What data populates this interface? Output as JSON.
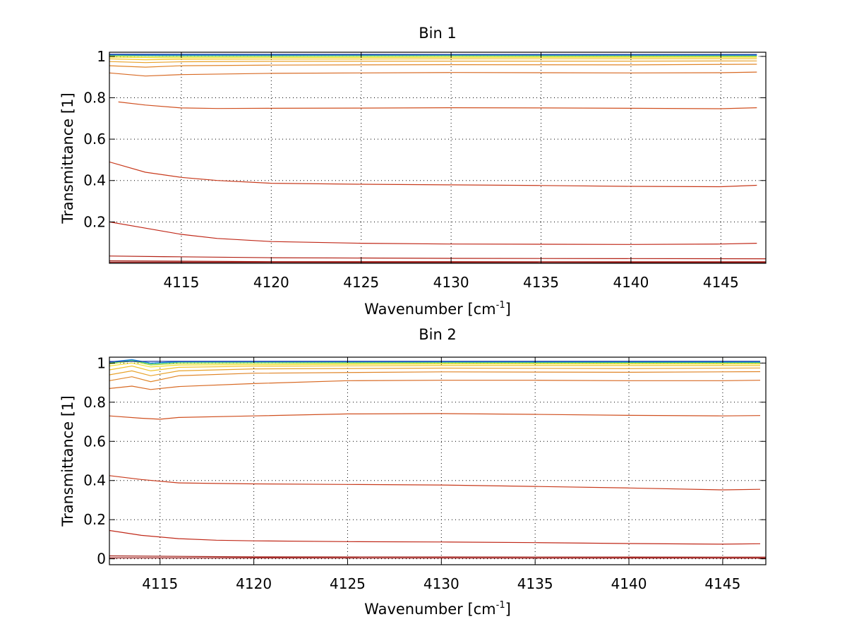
{
  "chart_data": [
    {
      "type": "line",
      "title": "Bin 1",
      "xlabel": "Wavenumber [cm",
      "xlabel_sup": "-1",
      "xlabel_end": "]",
      "ylabel": "Transmittance [1]",
      "xlim": [
        4111,
        4147.5
      ],
      "ylim": [
        0,
        1.02
      ],
      "grid": true,
      "xticks": [
        4115,
        4120,
        4125,
        4130,
        4135,
        4140,
        4145
      ],
      "xtick_labels": [
        "4115",
        "4120",
        "4125",
        "4130",
        "4135",
        "4140",
        "4145"
      ],
      "yticks": [
        0.2,
        0.4,
        0.6,
        0.8,
        1
      ],
      "ytick_labels": [
        "0.2",
        "0.4",
        "0.6",
        "0.8",
        "1"
      ],
      "series": [
        {
          "color": "#8b0000",
          "values": [
            [
              4111,
              0.005
            ],
            [
              4147.5,
              0.004
            ]
          ]
        },
        {
          "color": "#a01810",
          "values": [
            [
              4111,
              0.012
            ],
            [
              4120,
              0.008
            ],
            [
              4147.5,
              0.007
            ]
          ]
        },
        {
          "color": "#b22014",
          "values": [
            [
              4111,
              0.035
            ],
            [
              4114,
              0.032
            ],
            [
              4120,
              0.027
            ],
            [
              4130,
              0.024
            ],
            [
              4147.5,
              0.022
            ]
          ]
        },
        {
          "color": "#c02818",
          "values": [
            [
              4111,
              0.2
            ],
            [
              4113,
              0.17
            ],
            [
              4115,
              0.14
            ],
            [
              4117,
              0.12
            ],
            [
              4120,
              0.105
            ],
            [
              4125,
              0.097
            ],
            [
              4130,
              0.093
            ],
            [
              4135,
              0.092
            ],
            [
              4140,
              0.091
            ],
            [
              4145,
              0.093
            ],
            [
              4147,
              0.097
            ]
          ]
        },
        {
          "color": "#c83a1c",
          "values": [
            [
              4111,
              0.49
            ],
            [
              4113,
              0.44
            ],
            [
              4115,
              0.415
            ],
            [
              4117,
              0.4
            ],
            [
              4120,
              0.387
            ],
            [
              4125,
              0.382
            ],
            [
              4130,
              0.379
            ],
            [
              4135,
              0.376
            ],
            [
              4140,
              0.372
            ],
            [
              4145,
              0.37
            ],
            [
              4147,
              0.377
            ]
          ]
        },
        {
          "color": "#d05020",
          "values": [
            [
              4111.5,
              0.78
            ],
            [
              4113,
              0.765
            ],
            [
              4115,
              0.751
            ],
            [
              4117,
              0.748
            ],
            [
              4120,
              0.749
            ],
            [
              4125,
              0.75
            ],
            [
              4130,
              0.752
            ],
            [
              4135,
              0.751
            ],
            [
              4140,
              0.749
            ],
            [
              4145,
              0.747
            ],
            [
              4147,
              0.752
            ]
          ]
        },
        {
          "color": "#d86a24",
          "values": [
            [
              4111,
              0.92
            ],
            [
              4113,
              0.905
            ],
            [
              4115,
              0.912
            ],
            [
              4120,
              0.918
            ],
            [
              4125,
              0.92
            ],
            [
              4130,
              0.922
            ],
            [
              4135,
              0.921
            ],
            [
              4140,
              0.92
            ],
            [
              4145,
              0.921
            ],
            [
              4147,
              0.924
            ]
          ]
        },
        {
          "color": "#e08528",
          "values": [
            [
              4111,
              0.955
            ],
            [
              4113,
              0.948
            ],
            [
              4115,
              0.955
            ],
            [
              4120,
              0.958
            ],
            [
              4130,
              0.96
            ],
            [
              4140,
              0.959
            ],
            [
              4147,
              0.962
            ]
          ]
        },
        {
          "color": "#e8a22a",
          "values": [
            [
              4111,
              0.975
            ],
            [
              4113,
              0.97
            ],
            [
              4115,
              0.974
            ],
            [
              4120,
              0.976
            ],
            [
              4130,
              0.977
            ],
            [
              4140,
              0.977
            ],
            [
              4147,
              0.978
            ]
          ]
        },
        {
          "color": "#f0c22a",
          "values": [
            [
              4111,
              0.988
            ],
            [
              4113,
              0.984
            ],
            [
              4115,
              0.986
            ],
            [
              4130,
              0.988
            ],
            [
              4147,
              0.989
            ]
          ]
        },
        {
          "color": "#f5e02a",
          "values": [
            [
              4111,
              0.996
            ],
            [
              4114,
              0.993
            ],
            [
              4130,
              0.995
            ],
            [
              4147,
              0.996
            ]
          ]
        },
        {
          "color": "#b0e040",
          "values": [
            [
              4111,
              1.002
            ],
            [
              4114,
              0.999
            ],
            [
              4130,
              1.0
            ],
            [
              4147,
              1.0
            ]
          ]
        },
        {
          "color": "#30c080",
          "values": [
            [
              4111,
              1.006
            ],
            [
              4114,
              1.004
            ],
            [
              4130,
              1.005
            ],
            [
              4147,
              1.004
            ]
          ]
        },
        {
          "color": "#2080e0",
          "values": [
            [
              4111,
              1.008
            ],
            [
              4113,
              1.006
            ],
            [
              4130,
              1.007
            ],
            [
              4147,
              1.006
            ]
          ]
        },
        {
          "color": "#1030a0",
          "values": [
            [
              4111,
              1.01
            ],
            [
              4130,
              1.009
            ],
            [
              4147,
              1.009
            ]
          ]
        }
      ]
    },
    {
      "type": "line",
      "title": "Bin 2",
      "xlabel": "Wavenumber [cm",
      "xlabel_sup": "-1",
      "xlabel_end": "]",
      "ylabel": "Transmittance [1]",
      "xlim": [
        4112.3,
        4147.3
      ],
      "ylim": [
        -0.03,
        1.03
      ],
      "grid": true,
      "xticks": [
        4115,
        4120,
        4125,
        4130,
        4135,
        4140,
        4145
      ],
      "xtick_labels": [
        "4115",
        "4120",
        "4125",
        "4130",
        "4135",
        "4140",
        "4145"
      ],
      "yticks": [
        0,
        0.2,
        0.4,
        0.6,
        0.8,
        1
      ],
      "ytick_labels": [
        "0",
        "0.2",
        "0.4",
        "0.6",
        "0.8",
        "1"
      ],
      "series": [
        {
          "color": "#8b0000",
          "values": [
            [
              4112.3,
              0.005
            ],
            [
              4147.3,
              0.004
            ]
          ]
        },
        {
          "color": "#a01810",
          "values": [
            [
              4112.3,
              0.015
            ],
            [
              4120,
              0.01
            ],
            [
              4147.3,
              0.009
            ]
          ]
        },
        {
          "color": "#c02818",
          "values": [
            [
              4112.3,
              0.145
            ],
            [
              4114,
              0.12
            ],
            [
              4116,
              0.103
            ],
            [
              4118,
              0.095
            ],
            [
              4120,
              0.092
            ],
            [
              4125,
              0.088
            ],
            [
              4130,
              0.086
            ],
            [
              4135,
              0.083
            ],
            [
              4140,
              0.078
            ],
            [
              4145,
              0.075
            ],
            [
              4147,
              0.077
            ]
          ]
        },
        {
          "color": "#c83a1c",
          "values": [
            [
              4112.3,
              0.425
            ],
            [
              4114,
              0.405
            ],
            [
              4116,
              0.388
            ],
            [
              4118,
              0.385
            ],
            [
              4120,
              0.383
            ],
            [
              4125,
              0.38
            ],
            [
              4130,
              0.377
            ],
            [
              4135,
              0.37
            ],
            [
              4140,
              0.362
            ],
            [
              4145,
              0.352
            ],
            [
              4147,
              0.355
            ]
          ]
        },
        {
          "color": "#d05020",
          "values": [
            [
              4112.3,
              0.73
            ],
            [
              4114,
              0.718
            ],
            [
              4115,
              0.713
            ],
            [
              4116,
              0.722
            ],
            [
              4120,
              0.73
            ],
            [
              4125,
              0.74
            ],
            [
              4130,
              0.742
            ],
            [
              4135,
              0.738
            ],
            [
              4140,
              0.733
            ],
            [
              4145,
              0.73
            ],
            [
              4147,
              0.732
            ]
          ]
        },
        {
          "color": "#d86a24",
          "values": [
            [
              4112.3,
              0.87
            ],
            [
              4113.5,
              0.882
            ],
            [
              4114.5,
              0.865
            ],
            [
              4116,
              0.88
            ],
            [
              4120,
              0.895
            ],
            [
              4125,
              0.91
            ],
            [
              4130,
              0.912
            ],
            [
              4135,
              0.912
            ],
            [
              4140,
              0.91
            ],
            [
              4145,
              0.91
            ],
            [
              4147,
              0.912
            ]
          ]
        },
        {
          "color": "#e08528",
          "values": [
            [
              4112.3,
              0.91
            ],
            [
              4113.5,
              0.93
            ],
            [
              4114.5,
              0.905
            ],
            [
              4116,
              0.935
            ],
            [
              4120,
              0.948
            ],
            [
              4130,
              0.955
            ],
            [
              4140,
              0.953
            ],
            [
              4147,
              0.956
            ]
          ]
        },
        {
          "color": "#e8a22a",
          "values": [
            [
              4112.3,
              0.94
            ],
            [
              4113.5,
              0.96
            ],
            [
              4114.5,
              0.935
            ],
            [
              4116,
              0.96
            ],
            [
              4120,
              0.97
            ],
            [
              4130,
              0.974
            ],
            [
              4140,
              0.972
            ],
            [
              4147,
              0.975
            ]
          ]
        },
        {
          "color": "#f0c22a",
          "values": [
            [
              4112.3,
              0.965
            ],
            [
              4113.5,
              0.985
            ],
            [
              4114.5,
              0.96
            ],
            [
              4116,
              0.978
            ],
            [
              4120,
              0.984
            ],
            [
              4130,
              0.987
            ],
            [
              4147,
              0.987
            ]
          ]
        },
        {
          "color": "#f5e02a",
          "values": [
            [
              4112.3,
              0.985
            ],
            [
              4113.5,
              1.0
            ],
            [
              4114.5,
              0.98
            ],
            [
              4116,
              0.99
            ],
            [
              4130,
              0.995
            ],
            [
              4147,
              0.995
            ]
          ]
        },
        {
          "color": "#b0e040",
          "values": [
            [
              4112.3,
              0.995
            ],
            [
              4113.5,
              1.01
            ],
            [
              4114.5,
              0.99
            ],
            [
              4116,
              0.998
            ],
            [
              4130,
              1.0
            ],
            [
              4147,
              1.0
            ]
          ]
        },
        {
          "color": "#30c080",
          "values": [
            [
              4112.3,
              1.0
            ],
            [
              4113.5,
              1.015
            ],
            [
              4114.5,
              0.995
            ],
            [
              4116,
              1.004
            ],
            [
              4130,
              1.004
            ],
            [
              4147,
              1.003
            ]
          ]
        },
        {
          "color": "#2080e0",
          "values": [
            [
              4112.3,
              1.005
            ],
            [
              4113.5,
              1.018
            ],
            [
              4114.5,
              1.0
            ],
            [
              4116,
              1.007
            ],
            [
              4130,
              1.007
            ],
            [
              4147,
              1.006
            ]
          ]
        },
        {
          "color": "#1030a0",
          "values": [
            [
              4112.3,
              1.008
            ],
            [
              4116,
              1.009
            ],
            [
              4130,
              1.009
            ],
            [
              4147,
              1.009
            ]
          ]
        }
      ]
    }
  ]
}
